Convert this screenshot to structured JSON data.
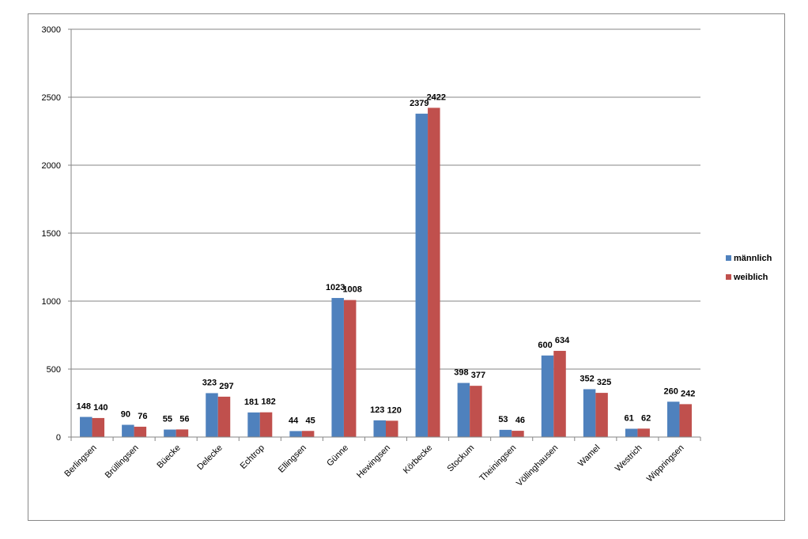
{
  "chart_data": {
    "type": "bar",
    "categories": [
      "Berlingsen",
      "Brüllingsen",
      "Büecke",
      "Delecke",
      "Echtrop",
      "Ellingsen",
      "Günne",
      "Hewingsen",
      "Körbecke",
      "Stockum",
      "Theiningsen",
      "Völlinghausen",
      "Wamel",
      "Westrich",
      "Wippringsen"
    ],
    "series": [
      {
        "name": "männlich",
        "color": "#4F81BD",
        "values": [
          148,
          90,
          55,
          323,
          181,
          44,
          1023,
          123,
          2379,
          398,
          53,
          600,
          352,
          61,
          260
        ]
      },
      {
        "name": "weiblich",
        "color": "#C0504D",
        "values": [
          140,
          76,
          56,
          297,
          182,
          45,
          1008,
          120,
          2422,
          377,
          46,
          634,
          325,
          62,
          242
        ]
      }
    ],
    "ylim": [
      0,
      3000
    ],
    "yticks": [
      0,
      500,
      1000,
      1500,
      2000,
      2500,
      3000
    ],
    "grid": true,
    "legend": "right",
    "title": "",
    "xlabel": "",
    "ylabel": ""
  }
}
